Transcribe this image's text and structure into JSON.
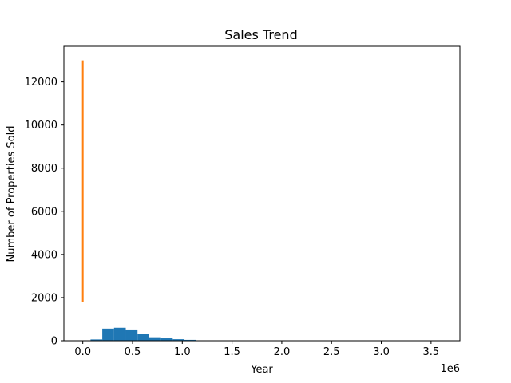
{
  "chart_data": {
    "type": "histogram",
    "title": "Sales Trend",
    "xlabel": "Year",
    "ylabel": "Number of Properties Sold",
    "x_offset_text": "1e6",
    "xlim": [
      -0.19,
      3.79
    ],
    "ylim": [
      0,
      13650
    ],
    "x_ticks": [
      0.0,
      0.5,
      1.0,
      1.5,
      2.0,
      2.5,
      3.0,
      3.5
    ],
    "x_tick_labels": [
      "0.0",
      "0.5",
      "1.0",
      "1.5",
      "2.0",
      "2.5",
      "3.0",
      "3.5"
    ],
    "y_ticks": [
      0,
      2000,
      4000,
      6000,
      8000,
      10000,
      12000
    ],
    "y_tick_labels": [
      "0",
      "2000",
      "4000",
      "6000",
      "8000",
      "10000",
      "12000"
    ],
    "grid": false,
    "histogram": {
      "color": "#1f77b4",
      "bins": [
        {
          "x0": 0.078,
          "x1": 0.196,
          "count": 60
        },
        {
          "x0": 0.196,
          "x1": 0.314,
          "count": 560
        },
        {
          "x0": 0.314,
          "x1": 0.432,
          "count": 600
        },
        {
          "x0": 0.432,
          "x1": 0.55,
          "count": 520
        },
        {
          "x0": 0.55,
          "x1": 0.668,
          "count": 300
        },
        {
          "x0": 0.668,
          "x1": 0.786,
          "count": 160
        },
        {
          "x0": 0.786,
          "x1": 0.904,
          "count": 110
        },
        {
          "x0": 0.904,
          "x1": 1.022,
          "count": 70
        },
        {
          "x0": 1.022,
          "x1": 1.14,
          "count": 40
        },
        {
          "x0": 1.14,
          "x1": 1.258,
          "count": 15
        },
        {
          "x0": 1.258,
          "x1": 1.376,
          "count": 8
        },
        {
          "x0": 1.376,
          "x1": 1.494,
          "count": 5
        },
        {
          "x0": 1.494,
          "x1": 1.612,
          "count": 3
        },
        {
          "x0": 1.612,
          "x1": 1.73,
          "count": 2
        },
        {
          "x0": 1.73,
          "x1": 1.848,
          "count": 1
        },
        {
          "x0": 1.848,
          "x1": 1.966,
          "count": 1
        },
        {
          "x0": 1.966,
          "x1": 2.084,
          "count": 1
        },
        {
          "x0": 2.084,
          "x1": 2.202,
          "count": 1
        },
        {
          "x0": 2.202,
          "x1": 2.32,
          "count": 0
        },
        {
          "x0": 2.32,
          "x1": 2.438,
          "count": 1
        },
        {
          "x0": 2.438,
          "x1": 2.556,
          "count": 0
        },
        {
          "x0": 2.556,
          "x1": 2.674,
          "count": 0
        },
        {
          "x0": 2.674,
          "x1": 2.792,
          "count": 0
        },
        {
          "x0": 2.792,
          "x1": 2.91,
          "count": 0
        },
        {
          "x0": 2.91,
          "x1": 3.028,
          "count": 0
        },
        {
          "x0": 3.028,
          "x1": 3.146,
          "count": 0
        },
        {
          "x0": 3.146,
          "x1": 3.264,
          "count": 0
        },
        {
          "x0": 3.264,
          "x1": 3.382,
          "count": 0
        },
        {
          "x0": 3.382,
          "x1": 3.5,
          "count": 0
        },
        {
          "x0": 3.5,
          "x1": 3.618,
          "count": 1
        }
      ]
    },
    "line": {
      "color": "#ff7f0e",
      "points": [
        {
          "x": 0.0,
          "y": 1800
        },
        {
          "x": 0.0,
          "y": 3700
        },
        {
          "x": 0.0,
          "y": 13000
        }
      ]
    }
  }
}
